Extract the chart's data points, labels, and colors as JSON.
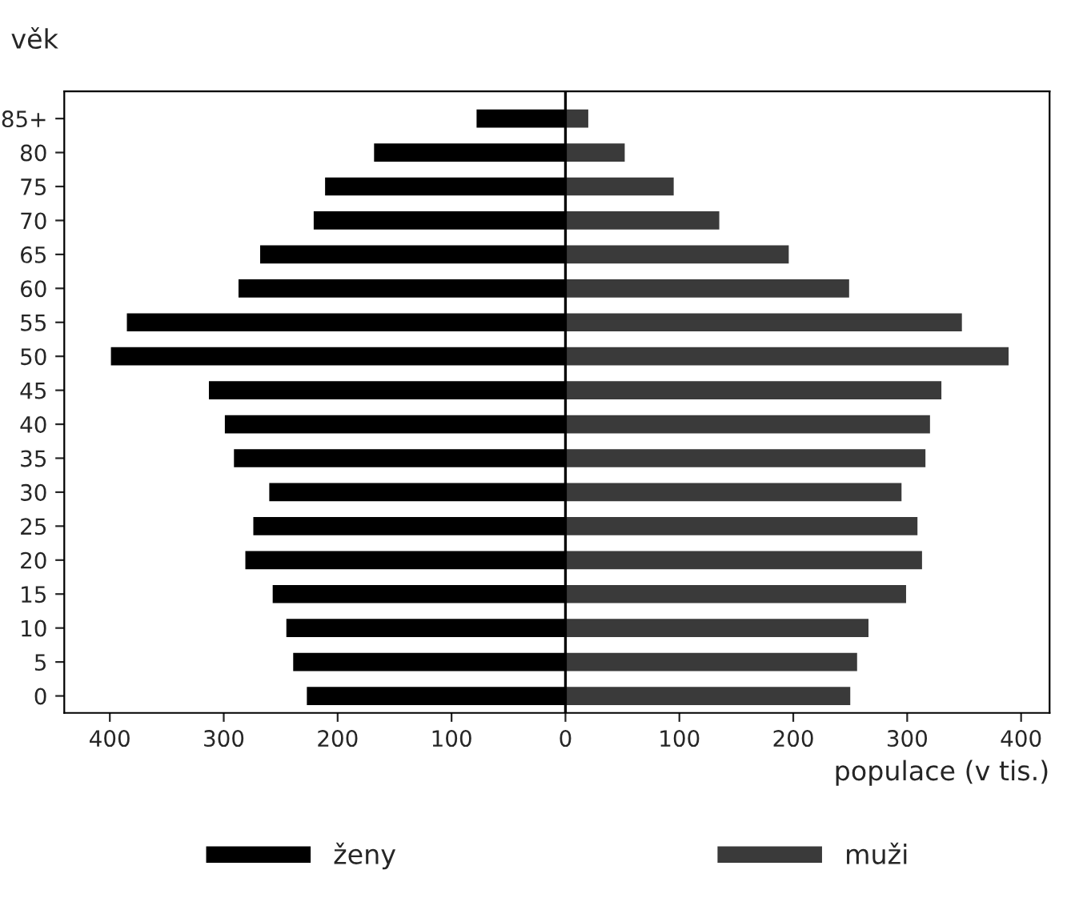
{
  "chart_data": {
    "type": "bar",
    "orientation": "horizontal",
    "stacked": true,
    "ylabel": "věk",
    "xlabel": "populace (v tis.)",
    "categories": [
      "85+",
      "80",
      "75",
      "70",
      "65",
      "60",
      "55",
      "50",
      "45",
      "40",
      "35",
      "30",
      "25",
      "20",
      "15",
      "10",
      "5",
      "0"
    ],
    "series": [
      {
        "name": "ženy",
        "color": "#000000",
        "values": [
          -79,
          -169,
          -212,
          -222,
          -269,
          -288,
          -386,
          -400,
          -314,
          -300,
          -292,
          -261,
          -275,
          -282,
          -258,
          -246,
          -240,
          -228
        ]
      },
      {
        "name": "muži",
        "color": "#3a3a3a",
        "values": [
          21,
          53,
          96,
          136,
          197,
          250,
          349,
          390,
          331,
          321,
          317,
          296,
          310,
          314,
          300,
          267,
          257,
          251
        ]
      }
    ],
    "xlim": [
      -440,
      425
    ],
    "xticks": [
      {
        "value": -400,
        "label": "400"
      },
      {
        "value": -300,
        "label": "300"
      },
      {
        "value": -200,
        "label": "200"
      },
      {
        "value": -100,
        "label": "100"
      },
      0,
      100,
      200,
      300,
      400
    ],
    "ref_lines": [
      {
        "axis": "x",
        "value": 0,
        "color": "#000000"
      }
    ],
    "grid": false,
    "legend": "bottom"
  }
}
